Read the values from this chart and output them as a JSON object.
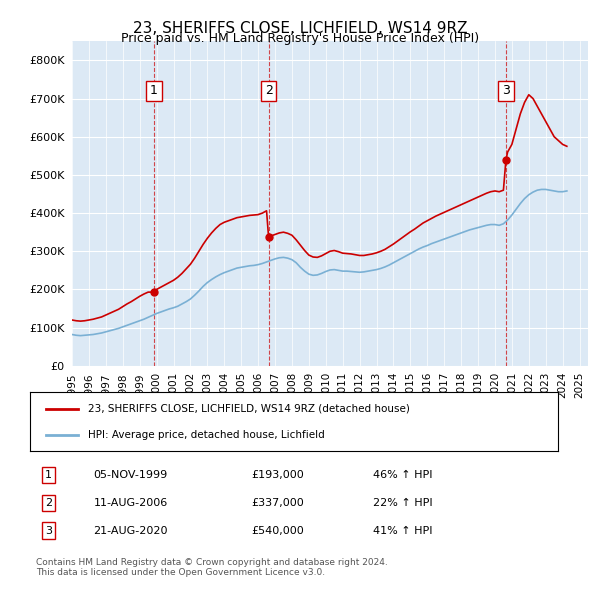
{
  "title": "23, SHERIFFS CLOSE, LICHFIELD, WS14 9RZ",
  "subtitle": "Price paid vs. HM Land Registry's House Price Index (HPI)",
  "ylabel_ticks": [
    "£0",
    "£100K",
    "£200K",
    "£300K",
    "£400K",
    "£500K",
    "£600K",
    "£700K",
    "£800K"
  ],
  "ytick_values": [
    0,
    100000,
    200000,
    300000,
    400000,
    500000,
    600000,
    700000,
    800000
  ],
  "ylim": [
    0,
    850000
  ],
  "xlim_start": 1995.0,
  "xlim_end": 2025.5,
  "bg_color": "#dce9f5",
  "plot_bg": "#dce9f5",
  "grid_color": "#ffffff",
  "sale_color": "#cc0000",
  "hpi_color": "#7ab0d4",
  "sales": [
    {
      "date_num": 1999.85,
      "price": 193000,
      "label": "1"
    },
    {
      "date_num": 2006.62,
      "price": 337000,
      "label": "2"
    },
    {
      "date_num": 2020.65,
      "price": 540000,
      "label": "3"
    }
  ],
  "legend_line1": "23, SHERIFFS CLOSE, LICHFIELD, WS14 9RZ (detached house)",
  "legend_line2": "HPI: Average price, detached house, Lichfield",
  "table_rows": [
    {
      "num": "1",
      "date": "05-NOV-1999",
      "price": "£193,000",
      "change": "46% ↑ HPI"
    },
    {
      "num": "2",
      "date": "11-AUG-2006",
      "price": "£337,000",
      "change": "22% ↑ HPI"
    },
    {
      "num": "3",
      "date": "21-AUG-2020",
      "price": "£540,000",
      "change": "41% ↑ HPI"
    }
  ],
  "footer": "Contains HM Land Registry data © Crown copyright and database right 2024.\nThis data is licensed under the Open Government Licence v3.0.",
  "hpi_data": {
    "years": [
      1995.0,
      1995.25,
      1995.5,
      1995.75,
      1996.0,
      1996.25,
      1996.5,
      1996.75,
      1997.0,
      1997.25,
      1997.5,
      1997.75,
      1998.0,
      1998.25,
      1998.5,
      1998.75,
      1999.0,
      1999.25,
      1999.5,
      1999.75,
      2000.0,
      2000.25,
      2000.5,
      2000.75,
      2001.0,
      2001.25,
      2001.5,
      2001.75,
      2002.0,
      2002.25,
      2002.5,
      2002.75,
      2003.0,
      2003.25,
      2003.5,
      2003.75,
      2004.0,
      2004.25,
      2004.5,
      2004.75,
      2005.0,
      2005.25,
      2005.5,
      2005.75,
      2006.0,
      2006.25,
      2006.5,
      2006.75,
      2007.0,
      2007.25,
      2007.5,
      2007.75,
      2008.0,
      2008.25,
      2008.5,
      2008.75,
      2009.0,
      2009.25,
      2009.5,
      2009.75,
      2010.0,
      2010.25,
      2010.5,
      2010.75,
      2011.0,
      2011.25,
      2011.5,
      2011.75,
      2012.0,
      2012.25,
      2012.5,
      2012.75,
      2013.0,
      2013.25,
      2013.5,
      2013.75,
      2014.0,
      2014.25,
      2014.5,
      2014.75,
      2015.0,
      2015.25,
      2015.5,
      2015.75,
      2016.0,
      2016.25,
      2016.5,
      2016.75,
      2017.0,
      2017.25,
      2017.5,
      2017.75,
      2018.0,
      2018.25,
      2018.5,
      2018.75,
      2019.0,
      2019.25,
      2019.5,
      2019.75,
      2020.0,
      2020.25,
      2020.5,
      2020.75,
      2021.0,
      2021.25,
      2021.5,
      2021.75,
      2022.0,
      2022.25,
      2022.5,
      2022.75,
      2023.0,
      2023.25,
      2023.5,
      2023.75,
      2024.0,
      2024.25
    ],
    "values": [
      82000,
      80000,
      79000,
      80000,
      81000,
      82000,
      84000,
      86000,
      89000,
      92000,
      95000,
      98000,
      102000,
      106000,
      110000,
      114000,
      118000,
      122000,
      127000,
      132000,
      137000,
      141000,
      145000,
      149000,
      152000,
      156000,
      162000,
      168000,
      175000,
      185000,
      196000,
      208000,
      218000,
      226000,
      233000,
      239000,
      244000,
      248000,
      252000,
      256000,
      258000,
      260000,
      262000,
      263000,
      265000,
      268000,
      272000,
      276000,
      280000,
      283000,
      284000,
      282000,
      278000,
      270000,
      258000,
      248000,
      240000,
      237000,
      238000,
      242000,
      247000,
      251000,
      252000,
      250000,
      248000,
      248000,
      247000,
      246000,
      245000,
      246000,
      248000,
      250000,
      252000,
      255000,
      259000,
      264000,
      270000,
      276000,
      282000,
      288000,
      294000,
      300000,
      306000,
      311000,
      315000,
      320000,
      324000,
      328000,
      332000,
      336000,
      340000,
      344000,
      348000,
      352000,
      356000,
      359000,
      362000,
      365000,
      368000,
      370000,
      370000,
      368000,
      372000,
      382000,
      395000,
      410000,
      425000,
      438000,
      448000,
      455000,
      460000,
      462000,
      462000,
      460000,
      458000,
      456000,
      456000,
      458000
    ]
  },
  "property_data": {
    "years": [
      1995.0,
      1995.25,
      1995.5,
      1995.75,
      1996.0,
      1996.25,
      1996.5,
      1996.75,
      1997.0,
      1997.25,
      1997.5,
      1997.75,
      1998.0,
      1998.25,
      1998.5,
      1998.75,
      1999.0,
      1999.25,
      1999.5,
      1999.75,
      1999.85,
      2000.0,
      2000.25,
      2000.5,
      2000.75,
      2001.0,
      2001.25,
      2001.5,
      2001.75,
      2002.0,
      2002.25,
      2002.5,
      2002.75,
      2003.0,
      2003.25,
      2003.5,
      2003.75,
      2004.0,
      2004.25,
      2004.5,
      2004.75,
      2005.0,
      2005.25,
      2005.5,
      2005.75,
      2006.0,
      2006.25,
      2006.5,
      2006.62,
      2006.75,
      2007.0,
      2007.25,
      2007.5,
      2007.75,
      2008.0,
      2008.25,
      2008.5,
      2008.75,
      2009.0,
      2009.25,
      2009.5,
      2009.75,
      2010.0,
      2010.25,
      2010.5,
      2010.75,
      2011.0,
      2011.25,
      2011.5,
      2011.75,
      2012.0,
      2012.25,
      2012.5,
      2012.75,
      2013.0,
      2013.25,
      2013.5,
      2013.75,
      2014.0,
      2014.25,
      2014.5,
      2014.75,
      2015.0,
      2015.25,
      2015.5,
      2015.75,
      2016.0,
      2016.25,
      2016.5,
      2016.75,
      2017.0,
      2017.25,
      2017.5,
      2017.75,
      2018.0,
      2018.25,
      2018.5,
      2018.75,
      2019.0,
      2019.25,
      2019.5,
      2019.75,
      2020.0,
      2020.25,
      2020.5,
      2020.65,
      2020.75,
      2021.0,
      2021.25,
      2021.5,
      2021.75,
      2022.0,
      2022.25,
      2022.5,
      2022.75,
      2023.0,
      2023.25,
      2023.5,
      2023.75,
      2024.0,
      2024.25
    ],
    "values": [
      120000,
      118000,
      117000,
      118000,
      120000,
      122000,
      125000,
      128000,
      133000,
      138000,
      143000,
      148000,
      155000,
      162000,
      168000,
      175000,
      182000,
      188000,
      193000,
      193000,
      193000,
      200000,
      206000,
      212000,
      218000,
      224000,
      232000,
      242000,
      254000,
      266000,
      282000,
      300000,
      318000,
      334000,
      348000,
      360000,
      370000,
      376000,
      380000,
      384000,
      388000,
      390000,
      392000,
      394000,
      395000,
      396000,
      400000,
      406000,
      337000,
      340000,
      344000,
      348000,
      350000,
      347000,
      342000,
      330000,
      316000,
      302000,
      290000,
      285000,
      284000,
      288000,
      294000,
      300000,
      302000,
      299000,
      295000,
      294000,
      293000,
      291000,
      289000,
      289000,
      291000,
      293000,
      296000,
      300000,
      305000,
      312000,
      319000,
      327000,
      335000,
      343000,
      351000,
      358000,
      366000,
      374000,
      380000,
      386000,
      392000,
      397000,
      402000,
      407000,
      412000,
      417000,
      422000,
      427000,
      432000,
      437000,
      442000,
      447000,
      452000,
      456000,
      458000,
      456000,
      460000,
      540000,
      560000,
      580000,
      620000,
      660000,
      690000,
      710000,
      700000,
      680000,
      660000,
      640000,
      620000,
      600000,
      590000,
      580000,
      575000
    ]
  }
}
